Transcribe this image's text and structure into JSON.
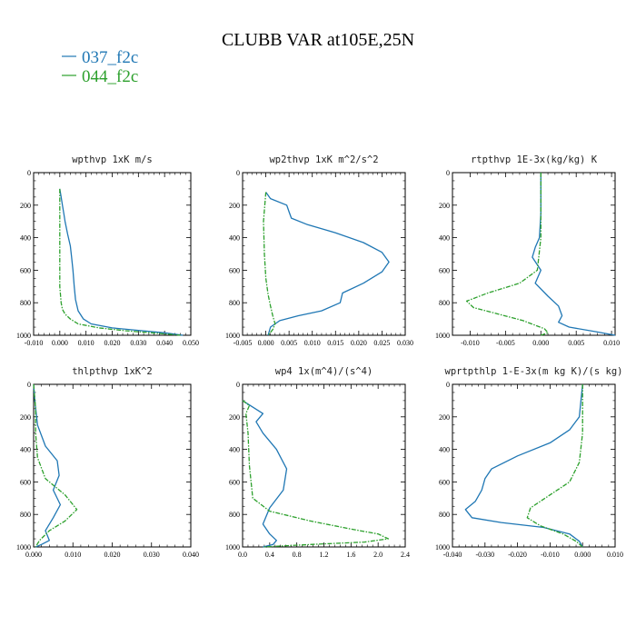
{
  "figure": {
    "title": "CLUBB VAR at105E,25N"
  },
  "legend": [
    {
      "label": "037_f2c",
      "color": "#1f77b4"
    },
    {
      "label": "044_f2c",
      "color": "#2ca02c"
    }
  ],
  "colors": {
    "series_a": "#1f77b4",
    "series_b": "#2ca02c",
    "axis": "#000000"
  },
  "chart_data": [
    {
      "type": "line",
      "title": "wpthvp  1xK m/s",
      "xlim": [
        -0.01,
        0.05
      ],
      "xticks": [
        "-0.010",
        "0.000",
        "0.010",
        "0.020",
        "0.030",
        "0.040",
        "0.050"
      ],
      "xtick_values": [
        -0.01,
        0.0,
        0.01,
        0.02,
        0.03,
        0.04,
        0.05
      ],
      "ylim": [
        0,
        1000
      ],
      "y_inverted": true,
      "yticks": [
        "0",
        "200",
        "400",
        "600",
        "800",
        "1000"
      ],
      "series": [
        {
          "name": "037_f2c",
          "x": [
            0.0,
            0.0005,
            0.001,
            0.0015,
            0.002,
            0.003,
            0.004,
            0.0045,
            0.005,
            0.0055,
            0.006,
            0.007,
            0.009,
            0.012,
            0.02,
            0.03,
            0.04,
            0.047
          ],
          "y": [
            100,
            150,
            200,
            250,
            300,
            380,
            450,
            520,
            600,
            700,
            780,
            850,
            900,
            930,
            955,
            970,
            985,
            1000
          ]
        },
        {
          "name": "044_f2c",
          "x": [
            0.0,
            0.0,
            0.0,
            0.0,
            0.0005,
            0.001,
            0.002,
            0.004,
            0.007,
            0.015,
            0.025,
            0.035,
            0.046
          ],
          "y": [
            100,
            300,
            500,
            700,
            800,
            840,
            870,
            900,
            930,
            955,
            972,
            985,
            1000
          ]
        }
      ]
    },
    {
      "type": "line",
      "title": "wp2thvp  1xK m^2/s^2",
      "xlim": [
        -0.005,
        0.03
      ],
      "xticks": [
        "-0.005",
        "0.000",
        "0.005",
        "0.010",
        "0.015",
        "0.020",
        "0.025",
        "0.030"
      ],
      "xtick_values": [
        -0.005,
        0.0,
        0.005,
        0.01,
        0.015,
        0.02,
        0.025,
        0.03
      ],
      "ylim": [
        0,
        1000
      ],
      "y_inverted": true,
      "yticks": [
        "0",
        "200",
        "400",
        "600",
        "800",
        "1000"
      ],
      "series": [
        {
          "name": "037_f2c",
          "x": [
            0.0,
            0.001,
            0.0045,
            0.005,
            0.0055,
            0.009,
            0.015,
            0.021,
            0.025,
            0.0265,
            0.025,
            0.021,
            0.0165,
            0.016,
            0.012,
            0.007,
            0.003,
            0.001,
            0.0005
          ],
          "y": [
            120,
            160,
            200,
            240,
            280,
            320,
            370,
            430,
            490,
            550,
            610,
            680,
            740,
            800,
            850,
            880,
            910,
            950,
            1000
          ]
        },
        {
          "name": "044_f2c",
          "x": [
            0.0,
            -0.0005,
            -0.0003,
            0.0,
            0.0005,
            0.001,
            0.0015,
            0.002,
            0.0015,
            0.0005
          ],
          "y": [
            120,
            300,
            500,
            650,
            750,
            820,
            880,
            930,
            965,
            1000
          ]
        }
      ]
    },
    {
      "type": "line",
      "title": "rtpthvp  1E-3x(kg/kg) K",
      "xlim": [
        -0.0125,
        0.0105
      ],
      "xticks": [
        "-0.010",
        "-0.005",
        "0.000",
        "0.005",
        "0.010"
      ],
      "xtick_values": [
        -0.01,
        -0.005,
        0.0,
        0.005,
        0.01
      ],
      "ylim": [
        0,
        1000
      ],
      "y_inverted": true,
      "yticks": [
        "0",
        "200",
        "400",
        "600",
        "800",
        "1000"
      ],
      "series": [
        {
          "name": "037_f2c",
          "x": [
            0.0,
            0.0,
            -0.0002,
            -0.0008,
            -0.0012,
            0.0,
            -0.0008,
            0.001,
            0.0025,
            0.003,
            0.0025,
            0.004,
            0.008,
            0.0105
          ],
          "y": [
            0,
            250,
            400,
            460,
            520,
            600,
            680,
            760,
            820,
            880,
            920,
            950,
            980,
            1000
          ]
        },
        {
          "name": "044_f2c",
          "x": [
            0.0,
            0.0,
            -0.0005,
            -0.003,
            -0.0075,
            -0.0105,
            -0.0095,
            -0.006,
            -0.0025,
            -0.001,
            0.0005,
            0.001,
            0.0
          ],
          "y": [
            0,
            400,
            600,
            680,
            740,
            790,
            830,
            870,
            910,
            935,
            960,
            985,
            1000
          ]
        }
      ]
    },
    {
      "type": "line",
      "title": "thlpthvp  1xK^2",
      "xlim": [
        0.0,
        0.04
      ],
      "xticks": [
        "0.000",
        "0.010",
        "0.020",
        "0.030",
        "0.040"
      ],
      "xtick_values": [
        0.0,
        0.01,
        0.02,
        0.03,
        0.04
      ],
      "ylim": [
        0,
        1000
      ],
      "y_inverted": true,
      "yticks": [
        "0",
        "200",
        "400",
        "600",
        "800",
        "1000"
      ],
      "series": [
        {
          "name": "037_f2c",
          "x": [
            0.0,
            0.0003,
            0.001,
            0.003,
            0.006,
            0.0065,
            0.005,
            0.0068,
            0.005,
            0.003,
            0.004,
            0.002,
            0.0005
          ],
          "y": [
            0,
            100,
            250,
            380,
            470,
            560,
            650,
            740,
            820,
            900,
            960,
            985,
            1000
          ]
        },
        {
          "name": "044_f2c",
          "x": [
            0.0,
            0.0005,
            0.0005,
            0.001,
            0.003,
            0.008,
            0.011,
            0.008,
            0.004,
            0.0015,
            0.0005
          ],
          "y": [
            0,
            150,
            300,
            450,
            580,
            680,
            770,
            840,
            900,
            960,
            1000
          ]
        }
      ]
    },
    {
      "type": "line",
      "title": "wp4  1x(m^4)/(s^4)",
      "xlim": [
        0.0,
        2.4
      ],
      "xticks": [
        "0.0",
        "0.4",
        "0.8",
        "1.2",
        "1.6",
        "2.0",
        "2.4"
      ],
      "xtick_values": [
        0.0,
        0.4,
        0.8,
        1.2,
        1.6,
        2.0,
        2.4
      ],
      "ylim": [
        0,
        1000
      ],
      "y_inverted": true,
      "yticks": [
        "0",
        "200",
        "400",
        "600",
        "800",
        "1000"
      ],
      "series": [
        {
          "name": "037_f2c",
          "x": [
            0.0,
            0.15,
            0.3,
            0.2,
            0.3,
            0.5,
            0.65,
            0.6,
            0.4,
            0.3,
            0.4,
            0.5,
            0.45,
            0.3
          ],
          "y": [
            100,
            140,
            180,
            230,
            300,
            400,
            520,
            650,
            760,
            860,
            920,
            960,
            985,
            1000
          ]
        },
        {
          "name": "044_f2c",
          "x": [
            0.0,
            0.1,
            0.05,
            0.08,
            0.1,
            0.15,
            0.4,
            1.0,
            1.6,
            2.0,
            2.15,
            1.8,
            1.0,
            0.3
          ],
          "y": [
            100,
            130,
            180,
            300,
            500,
            700,
            780,
            840,
            890,
            920,
            950,
            970,
            985,
            1000
          ]
        }
      ]
    },
    {
      "type": "line",
      "title": "wprtpthlp  1-E-3x(m kg K)/(s kg)",
      "xlim": [
        -0.04,
        0.01
      ],
      "xticks": [
        "-0.040",
        "-0.030",
        "-0.020",
        "-0.010",
        "0.000",
        "0.010"
      ],
      "xtick_values": [
        -0.04,
        -0.03,
        -0.02,
        -0.01,
        0.0,
        0.01
      ],
      "ylim": [
        0,
        1000
      ],
      "y_inverted": true,
      "yticks": [
        "0",
        "200",
        "400",
        "600",
        "800",
        "1000"
      ],
      "series": [
        {
          "name": "037_f2c",
          "x": [
            0.0,
            -0.001,
            -0.004,
            -0.01,
            -0.02,
            -0.028,
            -0.03,
            -0.031,
            -0.033,
            -0.036,
            -0.034,
            -0.025,
            -0.012,
            -0.004,
            -0.001,
            0.0
          ],
          "y": [
            0,
            200,
            280,
            360,
            440,
            520,
            580,
            650,
            720,
            770,
            820,
            850,
            880,
            920,
            965,
            1000
          ]
        },
        {
          "name": "044_f2c",
          "x": [
            0.0,
            0.0,
            -0.001,
            -0.004,
            -0.01,
            -0.016,
            -0.017,
            -0.013,
            -0.006,
            -0.002,
            0.0
          ],
          "y": [
            0,
            300,
            480,
            600,
            680,
            760,
            820,
            870,
            920,
            965,
            1000
          ]
        }
      ]
    }
  ]
}
